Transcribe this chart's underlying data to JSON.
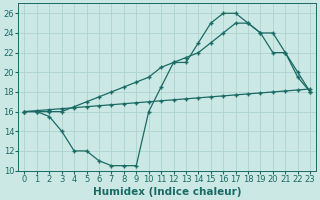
{
  "xlabel": "Humidex (Indice chaleur)",
  "xlim": [
    -0.5,
    23.5
  ],
  "ylim": [
    10,
    27
  ],
  "xticks": [
    0,
    1,
    2,
    3,
    4,
    5,
    6,
    7,
    8,
    9,
    10,
    11,
    12,
    13,
    14,
    15,
    16,
    17,
    18,
    19,
    20,
    21,
    22,
    23
  ],
  "yticks": [
    10,
    12,
    14,
    16,
    18,
    20,
    22,
    24,
    26
  ],
  "bg_color": "#cce8e5",
  "line_color": "#1a6b65",
  "grid_color": "#aed4d0",
  "line1_x": [
    0,
    1,
    2,
    3,
    4,
    5,
    6,
    7,
    8,
    9,
    10,
    11,
    12,
    13,
    14,
    15,
    16,
    17,
    18,
    19,
    20,
    21,
    22,
    23
  ],
  "line1_y": [
    16,
    16,
    15.5,
    14,
    12,
    12,
    11,
    10.5,
    10.5,
    10.5,
    16,
    18.5,
    21,
    21,
    23,
    25,
    26,
    26,
    25,
    24,
    22,
    22,
    19.5,
    18
  ],
  "line2_x": [
    0,
    1,
    2,
    3,
    4,
    5,
    6,
    7,
    8,
    9,
    10,
    11,
    12,
    13,
    14,
    15,
    16,
    17,
    18,
    19,
    20,
    21,
    22,
    23
  ],
  "line2_y": [
    16,
    16.1,
    16.2,
    16.3,
    16.4,
    16.5,
    16.6,
    16.7,
    16.8,
    16.9,
    17.0,
    17.1,
    17.2,
    17.3,
    17.4,
    17.5,
    17.6,
    17.7,
    17.8,
    17.9,
    18.0,
    18.1,
    18.2,
    18.3
  ],
  "line3_x": [
    0,
    1,
    2,
    3,
    4,
    5,
    6,
    7,
    8,
    9,
    10,
    11,
    12,
    13,
    14,
    15,
    16,
    17,
    18,
    19,
    20,
    21,
    22,
    23
  ],
  "line3_y": [
    16,
    16,
    16,
    16,
    16.5,
    17,
    17.5,
    18,
    18.5,
    19,
    19.5,
    20.5,
    21,
    21.5,
    22,
    23,
    24,
    25,
    25,
    24,
    24,
    22,
    20,
    18
  ],
  "tick_fontsize": 6,
  "xlabel_fontsize": 7.5
}
